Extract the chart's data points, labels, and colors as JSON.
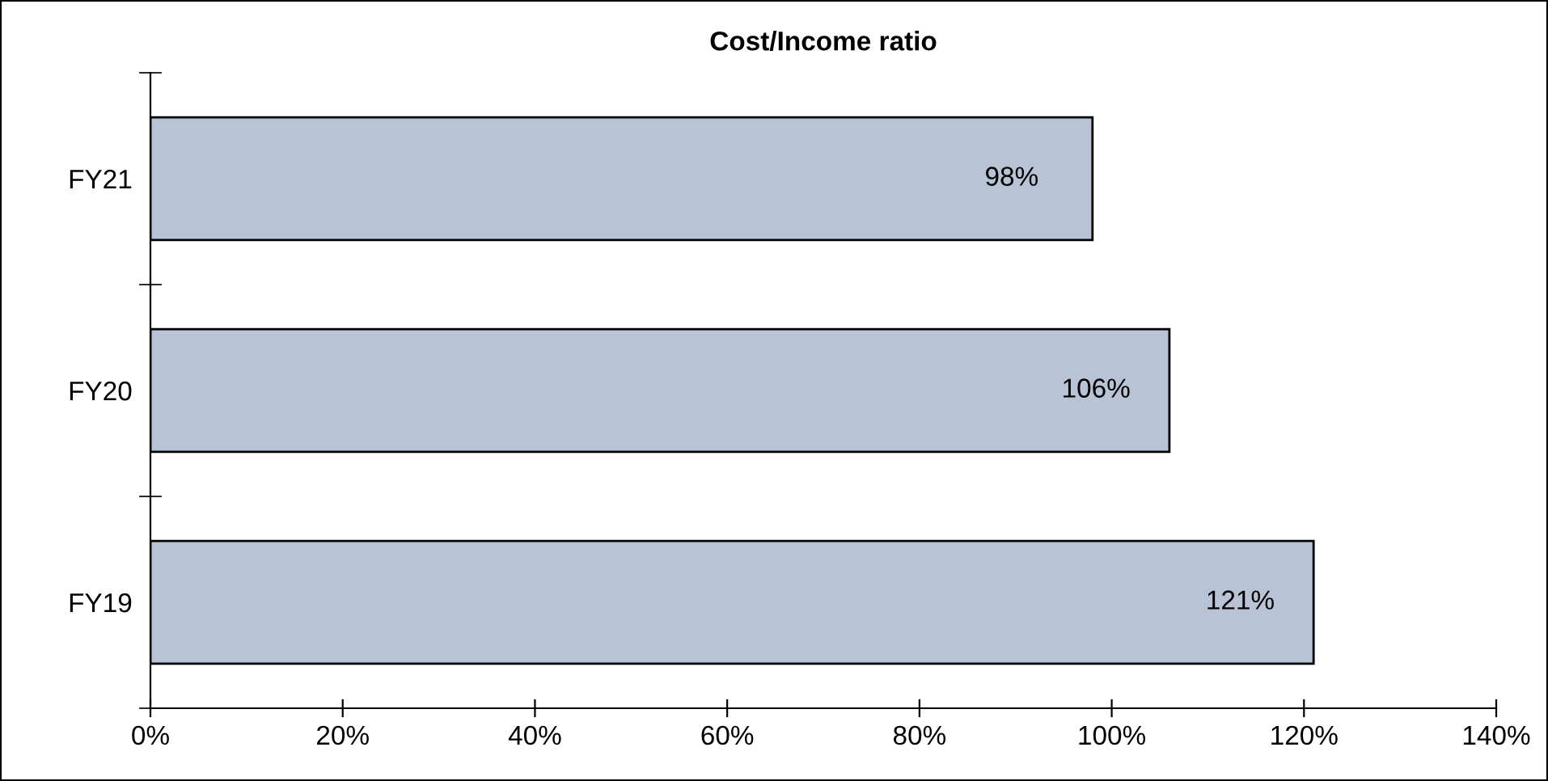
{
  "chart_data": {
    "type": "bar",
    "orientation": "horizontal",
    "title": "Cost/Income ratio",
    "categories": [
      "FY21",
      "FY20",
      "FY19"
    ],
    "values": [
      98,
      106,
      121
    ],
    "value_labels": [
      "98%",
      "106%",
      "121%"
    ],
    "color": "#b9c3d6",
    "xlim": [
      0,
      140
    ],
    "xticks": [
      {
        "value": 0,
        "label": "0%"
      },
      {
        "value": 20,
        "label": "20%"
      },
      {
        "value": 40,
        "label": "40%"
      },
      {
        "value": 60,
        "label": "60%"
      },
      {
        "value": 80,
        "label": "80%"
      },
      {
        "value": 100,
        "label": "100%"
      },
      {
        "value": 120,
        "label": "120%"
      },
      {
        "value": 140,
        "label": "140%"
      }
    ],
    "grid": false,
    "legend": false
  }
}
